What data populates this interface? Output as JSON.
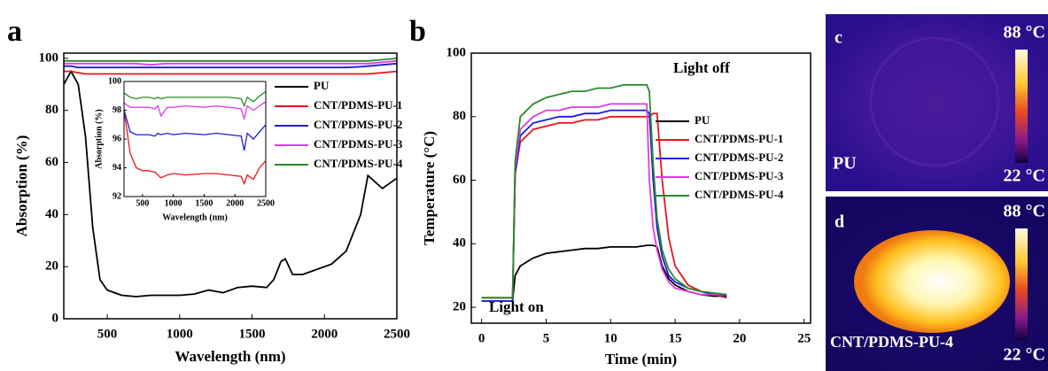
{
  "chart_data": [
    {
      "type": "line",
      "panel_label": "a",
      "x_label": "Wavelength (nm)",
      "y_label": "Absorption (%)",
      "xlim": [
        200,
        2500
      ],
      "ylim": [
        0,
        102
      ],
      "xticks": [
        500,
        1000,
        1500,
        2000,
        2500
      ],
      "yticks": [
        0,
        20,
        40,
        60,
        80,
        100
      ],
      "legend": "right",
      "x": [
        200,
        250,
        300,
        350,
        400,
        450,
        500,
        600,
        700,
        800,
        900,
        1000,
        1100,
        1200,
        1300,
        1400,
        1500,
        1600,
        1650,
        1700,
        1730,
        1780,
        1850,
        1950,
        2050,
        2150,
        2250,
        2300,
        2400,
        2500
      ],
      "series": [
        {
          "name": "PU",
          "color": "#000000",
          "values": [
            90,
            95,
            90,
            70,
            35,
            15,
            11,
            9,
            8.5,
            9,
            9,
            9,
            9.5,
            11,
            10,
            12,
            12.5,
            12,
            15,
            22,
            23,
            17,
            17,
            19,
            21,
            26,
            40,
            55,
            50,
            54
          ]
        },
        {
          "name": "CNT/PDMS-PU-1",
          "color": "#e8141c",
          "values": [
            95,
            95,
            94.5,
            94,
            94,
            94,
            94,
            94,
            94,
            94,
            94,
            94,
            94,
            94,
            94,
            94,
            94,
            94,
            94,
            94,
            94,
            94,
            94,
            94,
            94,
            94,
            94,
            94,
            94.5,
            95
          ]
        },
        {
          "name": "CNT/PDMS-PU-2",
          "color": "#1c1cd6",
          "values": [
            97,
            97,
            96.5,
            96.5,
            96.5,
            96.5,
            96.5,
            96.5,
            96.5,
            96.5,
            96.5,
            96.5,
            96.5,
            96.5,
            96.5,
            96.5,
            96.5,
            96.5,
            96.5,
            96.5,
            96.5,
            96.5,
            96.5,
            96.5,
            96.5,
            96.5,
            96.8,
            97,
            97.5,
            98
          ]
        },
        {
          "name": "CNT/PDMS-PU-3",
          "color": "#e03ce0",
          "values": [
            98,
            98,
            98,
            98,
            98,
            98,
            98,
            98,
            98,
            97.5,
            98,
            98,
            98,
            98,
            98,
            98,
            98,
            98,
            98,
            98,
            98,
            98,
            98,
            98,
            98,
            98,
            98,
            98,
            98.5,
            99
          ]
        },
        {
          "name": "CNT/PDMS-PU-4",
          "color": "#2a8a2a",
          "values": [
            99,
            99,
            99,
            99,
            99,
            99,
            99,
            99,
            99,
            99,
            99,
            99,
            99,
            99,
            99,
            99,
            99,
            99,
            99,
            99,
            99,
            99,
            99,
            99,
            99,
            99,
            99,
            99,
            99.5,
            100
          ]
        }
      ]
    },
    {
      "type": "line",
      "x_label": "Wavelength (nm)",
      "y_label": "Absorption (%)",
      "xlim": [
        200,
        2500
      ],
      "ylim": [
        92,
        100
      ],
      "xticks": [
        500,
        1000,
        1500,
        2000,
        2500
      ],
      "yticks": [
        92,
        94,
        96,
        98,
        100
      ],
      "x": [
        200,
        300,
        400,
        500,
        600,
        700,
        750,
        800,
        900,
        1000,
        1200,
        1500,
        1700,
        1900,
        2100,
        2150,
        2200,
        2300,
        2400,
        2500
      ],
      "series": [
        {
          "color": "#e8141c",
          "values": [
            98,
            95,
            94,
            93.8,
            93.8,
            93.7,
            93.5,
            93.3,
            93.5,
            93.6,
            93.5,
            93.6,
            93.6,
            93.5,
            93.4,
            92.9,
            93.5,
            93.2,
            94,
            94.5
          ]
        },
        {
          "color": "#1c1cd6",
          "values": [
            98,
            96.5,
            96.3,
            96.3,
            96.3,
            96.2,
            96.4,
            96.3,
            96.4,
            96.3,
            96.4,
            96.3,
            96.4,
            96.3,
            96.2,
            95.2,
            96.4,
            96,
            96.5,
            97
          ]
        },
        {
          "color": "#e03ce0",
          "values": [
            98.5,
            98.2,
            98.2,
            98.2,
            98.2,
            98.1,
            98.3,
            97.6,
            98.2,
            98.2,
            98.3,
            98.2,
            98.3,
            98.2,
            98.1,
            97.4,
            98.3,
            98,
            98.3,
            98.6
          ]
        },
        {
          "color": "#2a8a2a",
          "values": [
            99.2,
            98.9,
            98.8,
            98.9,
            98.9,
            98.8,
            98.9,
            98.8,
            98.9,
            98.9,
            98.9,
            98.9,
            98.9,
            98.9,
            98.8,
            98.3,
            98.9,
            98.6,
            99,
            99.3
          ]
        }
      ]
    },
    {
      "type": "line",
      "panel_label": "b",
      "x_label": "Time (min)",
      "y_label": "Temperature (°C)",
      "xlim": [
        -0.8,
        25.5
      ],
      "ylim": [
        15,
        100
      ],
      "xticks": [
        0,
        5,
        10,
        15,
        20,
        25
      ],
      "yticks": [
        20,
        40,
        60,
        80,
        100
      ],
      "legend": "right",
      "annotations": [
        "Light off",
        "Light on"
      ],
      "x": [
        0,
        2.4,
        2.6,
        3,
        4,
        5,
        6,
        7,
        8,
        9,
        10,
        11,
        12,
        12.8,
        13,
        13.3,
        13.6,
        14,
        14.5,
        15,
        16,
        17,
        18,
        19
      ],
      "series": [
        {
          "name": "PU",
          "color": "#000000",
          "values": [
            22,
            22,
            30,
            33,
            35.5,
            37,
            37.5,
            38,
            38.5,
            38.5,
            39,
            39,
            39,
            39.5,
            39.5,
            39.5,
            39,
            33,
            29,
            27,
            25,
            24,
            23.5,
            23.5
          ]
        },
        {
          "name": "CNT/PDMS-PU-1",
          "color": "#e8141c",
          "values": [
            23,
            23,
            62,
            72,
            76,
            77,
            78,
            78,
            79,
            79,
            80,
            80,
            80,
            80,
            80,
            81,
            81,
            60,
            42,
            33,
            27,
            25,
            24,
            23
          ]
        },
        {
          "name": "CNT/PDMS-PU-2",
          "color": "#1c1cd6",
          "values": [
            22,
            22,
            62,
            74,
            78,
            79,
            80,
            80,
            81,
            81,
            82,
            82,
            82,
            82,
            81,
            60,
            45,
            36,
            30,
            28,
            26,
            25,
            24,
            23.5
          ]
        },
        {
          "name": "CNT/PDMS-PU-3",
          "color": "#e03ce0",
          "values": [
            23,
            23,
            64,
            76,
            80,
            82,
            82,
            83,
            83,
            83,
            84,
            84,
            84,
            84,
            60,
            45,
            38,
            32,
            28,
            26,
            25,
            24,
            24,
            24
          ]
        },
        {
          "name": "CNT/PDMS-PU-4",
          "color": "#2a8a2a",
          "values": [
            23,
            23,
            66,
            80,
            84,
            86,
            87,
            88,
            88,
            89,
            89,
            90,
            90,
            90,
            88,
            65,
            48,
            38,
            32,
            29,
            26,
            25,
            24.5,
            24
          ]
        }
      ]
    }
  ],
  "thermal_images": [
    {
      "panel_label": "c",
      "max": "88 °C",
      "min": "22 °C",
      "sample": "PU"
    },
    {
      "panel_label": "d",
      "max": "88 °C",
      "min": "22 °C",
      "sample": "CNT/PDMS-PU-4"
    }
  ]
}
